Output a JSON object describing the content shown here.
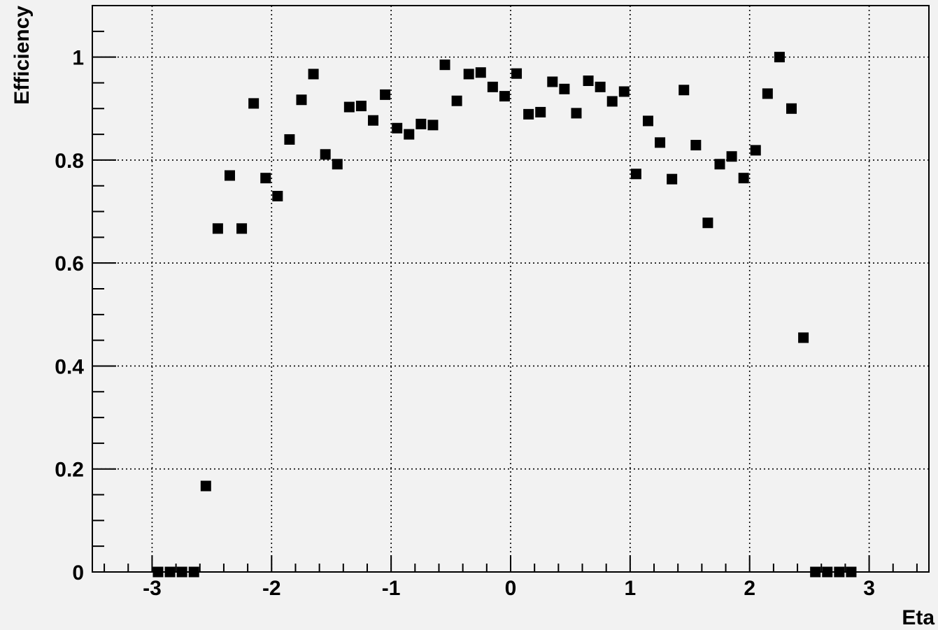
{
  "chart_data": {
    "type": "scatter",
    "title": "",
    "xlabel": "Eta",
    "ylabel": "Efficiency",
    "xlim": [
      -3.5,
      3.5
    ],
    "ylim": [
      0,
      1.1
    ],
    "x_ticks": [
      -3,
      -2,
      -1,
      0,
      1,
      2,
      3
    ],
    "y_ticks": [
      0,
      0.2,
      0.4,
      0.6,
      0.8,
      1
    ],
    "x_tick_labels": [
      "-3",
      "-2",
      "-1",
      "0",
      "1",
      "2",
      "3"
    ],
    "y_tick_labels": [
      "0",
      "0.2",
      "0.4",
      "0.6",
      "0.8",
      "1"
    ],
    "grid": true,
    "marker_color": "#000000",
    "background_color": "#f2f2f2",
    "points": [
      {
        "x": -2.95,
        "y": 0
      },
      {
        "x": -2.85,
        "y": 0
      },
      {
        "x": -2.75,
        "y": 0
      },
      {
        "x": -2.65,
        "y": 0
      },
      {
        "x": -2.55,
        "y": 0.167
      },
      {
        "x": -2.45,
        "y": 0.667
      },
      {
        "x": -2.35,
        "y": 0.77
      },
      {
        "x": -2.25,
        "y": 0.667
      },
      {
        "x": -2.15,
        "y": 0.91
      },
      {
        "x": -2.05,
        "y": 0.765
      },
      {
        "x": -1.95,
        "y": 0.73
      },
      {
        "x": -1.85,
        "y": 0.84
      },
      {
        "x": -1.75,
        "y": 0.917
      },
      {
        "x": -1.65,
        "y": 0.967
      },
      {
        "x": -1.55,
        "y": 0.811
      },
      {
        "x": -1.45,
        "y": 0.792
      },
      {
        "x": -1.35,
        "y": 0.903
      },
      {
        "x": -1.25,
        "y": 0.905
      },
      {
        "x": -1.15,
        "y": 0.877
      },
      {
        "x": -1.05,
        "y": 0.927
      },
      {
        "x": -0.95,
        "y": 0.862
      },
      {
        "x": -0.85,
        "y": 0.85
      },
      {
        "x": -0.75,
        "y": 0.87
      },
      {
        "x": -0.65,
        "y": 0.868
      },
      {
        "x": -0.55,
        "y": 0.985
      },
      {
        "x": -0.45,
        "y": 0.915
      },
      {
        "x": -0.35,
        "y": 0.967
      },
      {
        "x": -0.25,
        "y": 0.97
      },
      {
        "x": -0.15,
        "y": 0.942
      },
      {
        "x": -0.05,
        "y": 0.924
      },
      {
        "x": 0.05,
        "y": 0.968
      },
      {
        "x": 0.15,
        "y": 0.889
      },
      {
        "x": 0.25,
        "y": 0.893
      },
      {
        "x": 0.35,
        "y": 0.952
      },
      {
        "x": 0.45,
        "y": 0.938
      },
      {
        "x": 0.55,
        "y": 0.891
      },
      {
        "x": 0.65,
        "y": 0.954
      },
      {
        "x": 0.75,
        "y": 0.942
      },
      {
        "x": 0.85,
        "y": 0.914
      },
      {
        "x": 0.95,
        "y": 0.933
      },
      {
        "x": 1.05,
        "y": 0.773
      },
      {
        "x": 1.15,
        "y": 0.876
      },
      {
        "x": 1.25,
        "y": 0.834
      },
      {
        "x": 1.35,
        "y": 0.763
      },
      {
        "x": 1.45,
        "y": 0.936
      },
      {
        "x": 1.55,
        "y": 0.829
      },
      {
        "x": 1.65,
        "y": 0.678
      },
      {
        "x": 1.75,
        "y": 0.792
      },
      {
        "x": 1.85,
        "y": 0.807
      },
      {
        "x": 1.95,
        "y": 0.765
      },
      {
        "x": 2.05,
        "y": 0.819
      },
      {
        "x": 2.15,
        "y": 0.929
      },
      {
        "x": 2.25,
        "y": 1.0
      },
      {
        "x": 2.35,
        "y": 0.9
      },
      {
        "x": 2.45,
        "y": 0.455
      },
      {
        "x": 2.55,
        "y": 0
      },
      {
        "x": 2.65,
        "y": 0
      },
      {
        "x": 2.75,
        "y": 0
      },
      {
        "x": 2.85,
        "y": 0
      }
    ]
  }
}
